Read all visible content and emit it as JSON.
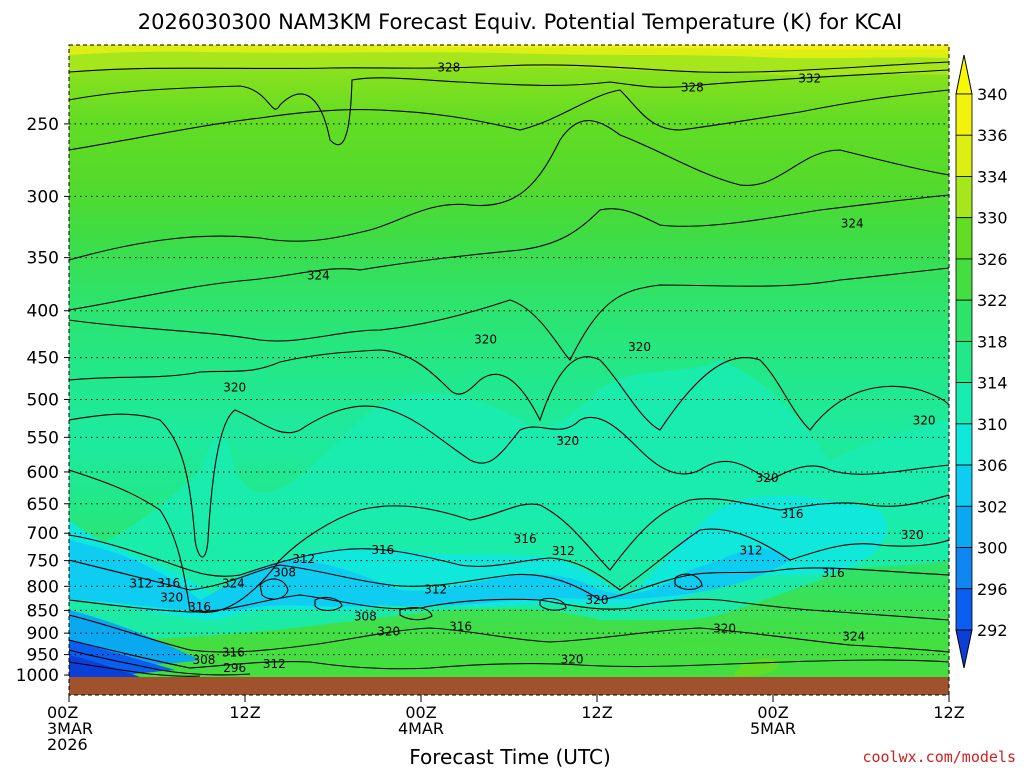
{
  "chart_data": {
    "type": "heatmap",
    "title": "2026030300 NAM3KM Forecast Equiv. Potential Temperature (K) for KCAI",
    "xlabel": "Forecast Time (UTC)",
    "ylabel": "",
    "credit": "coolwx.com/models",
    "y_scale": "log",
    "y_inverted": true,
    "ylim": [
      1005,
      205
    ],
    "xlim": [
      0,
      60
    ],
    "yticks": [
      250,
      300,
      350,
      400,
      450,
      500,
      550,
      600,
      650,
      700,
      750,
      800,
      850,
      900,
      950,
      1000
    ],
    "xticks": [
      {
        "hour": 0,
        "lines": [
          "00Z",
          "3MAR",
          "2026"
        ]
      },
      {
        "hour": 12,
        "lines": [
          "12Z"
        ]
      },
      {
        "hour": 24,
        "lines": [
          "00Z",
          "4MAR"
        ]
      },
      {
        "hour": 36,
        "lines": [
          "12Z"
        ]
      },
      {
        "hour": 48,
        "lines": [
          "00Z",
          "5MAR"
        ]
      },
      {
        "hour": 60,
        "lines": [
          "12Z"
        ]
      }
    ],
    "colorbar": {
      "levels": [
        292,
        296,
        300,
        302,
        306,
        310,
        314,
        318,
        322,
        326,
        330,
        334,
        336,
        340
      ],
      "colors": [
        "#0a3fd8",
        "#0a5ef0",
        "#0f86f0",
        "#0aa8f0",
        "#0fcdf0",
        "#10e8dc",
        "#18ecb0",
        "#22e88a",
        "#2ee36a",
        "#45de40",
        "#62dc24",
        "#a6e61c",
        "#dcee14",
        "#f2f20c",
        "#f8f800"
      ],
      "arrows": "both"
    },
    "contour_labels": [
      {
        "text": "328",
        "hour": 25.9,
        "p": 217
      },
      {
        "text": "328",
        "hour": 42.5,
        "p": 228
      },
      {
        "text": "332",
        "hour": 50.5,
        "p": 223
      },
      {
        "text": "324",
        "hour": 53.4,
        "p": 321
      },
      {
        "text": "324",
        "hour": 17.0,
        "p": 366
      },
      {
        "text": "320",
        "hour": 28.4,
        "p": 430
      },
      {
        "text": "320",
        "hour": 38.9,
        "p": 438
      },
      {
        "text": "320",
        "hour": 11.3,
        "p": 485
      },
      {
        "text": "320",
        "hour": 58.3,
        "p": 527
      },
      {
        "text": "320",
        "hour": 34.0,
        "p": 555
      },
      {
        "text": "320",
        "hour": 47.6,
        "p": 609
      },
      {
        "text": "316",
        "hour": 49.3,
        "p": 667
      },
      {
        "text": "320",
        "hour": 57.5,
        "p": 703
      },
      {
        "text": "316",
        "hour": 31.1,
        "p": 710
      },
      {
        "text": "316",
        "hour": 21.4,
        "p": 730
      },
      {
        "text": "312",
        "hour": 16.0,
        "p": 747
      },
      {
        "text": "312",
        "hour": 33.7,
        "p": 732
      },
      {
        "text": "312",
        "hour": 46.5,
        "p": 731
      },
      {
        "text": "316",
        "hour": 52.1,
        "p": 774
      },
      {
        "text": "308",
        "hour": 14.7,
        "p": 773
      },
      {
        "text": "312",
        "hour": 4.9,
        "p": 794
      },
      {
        "text": "316",
        "hour": 6.8,
        "p": 793
      },
      {
        "text": "324",
        "hour": 11.2,
        "p": 794
      },
      {
        "text": "312",
        "hour": 25.0,
        "p": 806
      },
      {
        "text": "320",
        "hour": 7.0,
        "p": 823
      },
      {
        "text": "320",
        "hour": 36.0,
        "p": 828
      },
      {
        "text": "316",
        "hour": 8.9,
        "p": 843
      },
      {
        "text": "308",
        "hour": 20.2,
        "p": 863
      },
      {
        "text": "316",
        "hour": 26.7,
        "p": 885
      },
      {
        "text": "320",
        "hour": 21.8,
        "p": 896
      },
      {
        "text": "320",
        "hour": 44.7,
        "p": 890
      },
      {
        "text": "324",
        "hour": 53.5,
        "p": 908
      },
      {
        "text": "320",
        "hour": 34.3,
        "p": 962
      },
      {
        "text": "308",
        "hour": 9.2,
        "p": 963
      },
      {
        "text": "316",
        "hour": 11.2,
        "p": 945
      },
      {
        "text": "296",
        "hour": 11.3,
        "p": 983
      },
      {
        "text": "312",
        "hour": 14.0,
        "p": 973
      }
    ]
  }
}
